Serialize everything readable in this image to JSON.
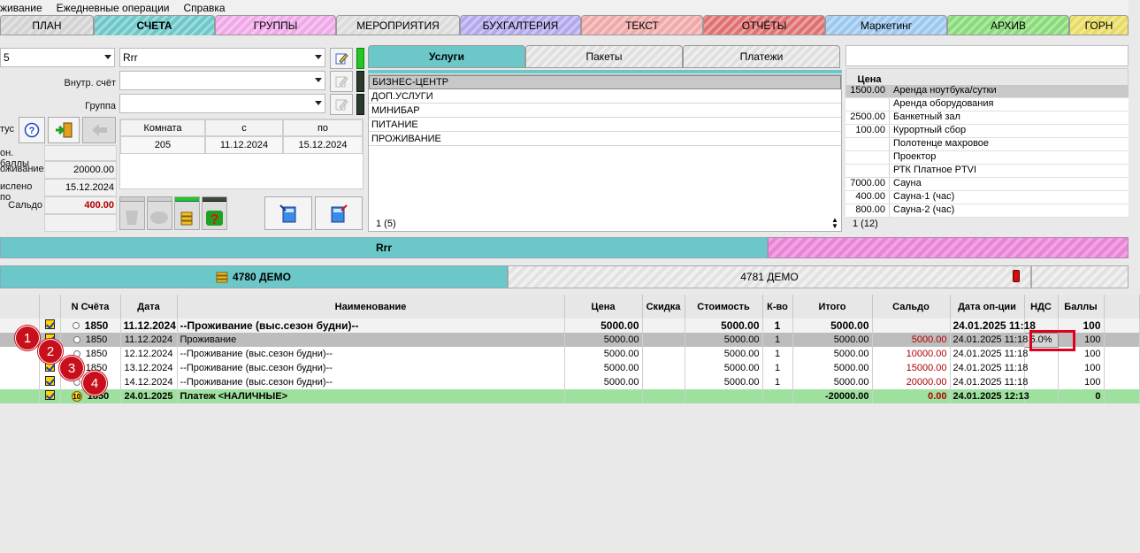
{
  "menu": [
    "живание",
    "Ежедневные операции",
    "Справка"
  ],
  "top_tabs": [
    {
      "label": "ПЛАН",
      "color": "#d3d3d3"
    },
    {
      "label": "СЧЕТА",
      "color": "#6cc8c8",
      "active": true
    },
    {
      "label": "ГРУППЫ",
      "color": "#f0a8e8"
    },
    {
      "label": "МЕРОПРИЯТИЯ",
      "color": "#dcdcdc"
    },
    {
      "label": "БУХГАЛТЕРИЯ",
      "color": "#b4a8ec"
    },
    {
      "label": "ТЕКСТ",
      "color": "#f0a8a8"
    },
    {
      "label": "ОТЧЁТЫ",
      "color": "#e07070"
    },
    {
      "label": "Маркетинг",
      "color": "#9cc8f0"
    },
    {
      "label": "АРХИВ",
      "color": "#88dc78"
    },
    {
      "label": "ГОРН",
      "color": "#e8dc60"
    }
  ],
  "left": {
    "field1_value": "5",
    "field2_value": "Rrr",
    "vnutr_label": "Внутр. счёт",
    "gruppa_label": "Группа",
    "status_label": "тус",
    "bonus_label": "он. баллы",
    "prozh_label": "оживание",
    "prozh_value": "20000.00",
    "nachisl_label": "ислено по",
    "nachisl_value": "15.12.2024",
    "saldo_label": "Сальдо",
    "saldo_value": "400.00",
    "room_table": {
      "headers": [
        "Комната",
        "с",
        "по"
      ],
      "row": [
        "205",
        "11.12.2024",
        "15.12.2024"
      ]
    }
  },
  "services": {
    "tabs": [
      "Услуги",
      "Пакеты",
      "Платежи"
    ],
    "items": [
      "БИЗНЕС-ЦЕНТР",
      "ДОП.УСЛУГИ",
      "МИНИБАР",
      "ПИТАНИЕ",
      "ПРОЖИВАНИЕ"
    ],
    "footer": "1 (5)"
  },
  "prices": {
    "header": "Цена",
    "rows": [
      {
        "price": "1500.00",
        "name": "Аренда ноутбука/сутки"
      },
      {
        "price": "",
        "name": "Аренда оборудования"
      },
      {
        "price": "2500.00",
        "name": "Банкетный зал"
      },
      {
        "price": "100.00",
        "name": "Курортный сбор"
      },
      {
        "price": "",
        "name": "Полотенце махровое"
      },
      {
        "price": "",
        "name": "Проектор"
      },
      {
        "price": "",
        "name": "РТК Платное PTVI"
      },
      {
        "price": "7000.00",
        "name": "Сауна"
      },
      {
        "price": "400.00",
        "name": "Сауна-1 (час)"
      },
      {
        "price": "800.00",
        "name": "Сауна-2 (час)"
      }
    ],
    "footer": "1 (12)"
  },
  "guest_bar": {
    "name": "Rrr"
  },
  "accounts_bar": {
    "left": "4780  ДЕМО",
    "right": "4781  ДЕМО"
  },
  "table": {
    "headers": [
      "",
      "",
      "N Счёта",
      "Дата",
      "Наименование",
      "Цена",
      "Скидка",
      "Стоимость",
      "К-во",
      "Итого",
      "Сальдо",
      "Дата оп-ции",
      "НДС",
      "Баллы"
    ],
    "rows": [
      {
        "acc": "1850",
        "date": "11.12.2024",
        "name": "--Проживание (выс.сезон будни)--",
        "price": "5000.00",
        "disc": "",
        "cost": "5000.00",
        "qty": "1",
        "total": "5000.00",
        "saldo": "",
        "opdate": "24.01.2025 11:18",
        "nds": "",
        "pts": "100",
        "style": "group"
      },
      {
        "acc": "1850",
        "date": "11.12.2024",
        "name": "Проживание",
        "price": "5000.00",
        "disc": "",
        "cost": "5000.00",
        "qty": "1",
        "total": "5000.00",
        "saldo": "5000.00",
        "opdate": "24.01.2025 11:18",
        "nds": "5.0%",
        "pts": "100",
        "style": "selected"
      },
      {
        "acc": "1850",
        "date": "12.12.2024",
        "name": "--Проживание (выс.сезон будни)--",
        "price": "5000.00",
        "disc": "",
        "cost": "5000.00",
        "qty": "1",
        "total": "5000.00",
        "saldo": "10000.00",
        "opdate": "24.01.2025 11:18",
        "nds": "",
        "pts": "100",
        "style": "normal"
      },
      {
        "acc": "1850",
        "date": "13.12.2024",
        "name": "--Проживание (выс.сезон будни)--",
        "price": "5000.00",
        "disc": "",
        "cost": "5000.00",
        "qty": "1",
        "total": "5000.00",
        "saldo": "15000.00",
        "opdate": "24.01.2025 11:18",
        "nds": "",
        "pts": "100",
        "style": "normal"
      },
      {
        "acc": "1850",
        "date": "14.12.2024",
        "name": "--Проживание (выс.сезон будни)--",
        "price": "5000.00",
        "disc": "",
        "cost": "5000.00",
        "qty": "1",
        "total": "5000.00",
        "saldo": "20000.00",
        "opdate": "24.01.2025 11:18",
        "nds": "",
        "pts": "100",
        "style": "normal"
      },
      {
        "acc": "1850",
        "date": "24.01.2025",
        "name": "Платеж <НАЛИЧНЫЕ>",
        "price": "",
        "disc": "",
        "cost": "",
        "qty": "",
        "total": "-20000.00",
        "saldo": "0.00",
        "opdate": "24.01.2025 12:13",
        "nds": "",
        "pts": "0",
        "style": "payment"
      }
    ],
    "payment_marker": "10"
  },
  "badges": [
    "1",
    "2",
    "3",
    "4"
  ],
  "colors": {
    "teal": "#6cc8c8",
    "pink": "#f0a8e8",
    "green_row": "#a0e0a0",
    "highlight": "#e0001c"
  }
}
